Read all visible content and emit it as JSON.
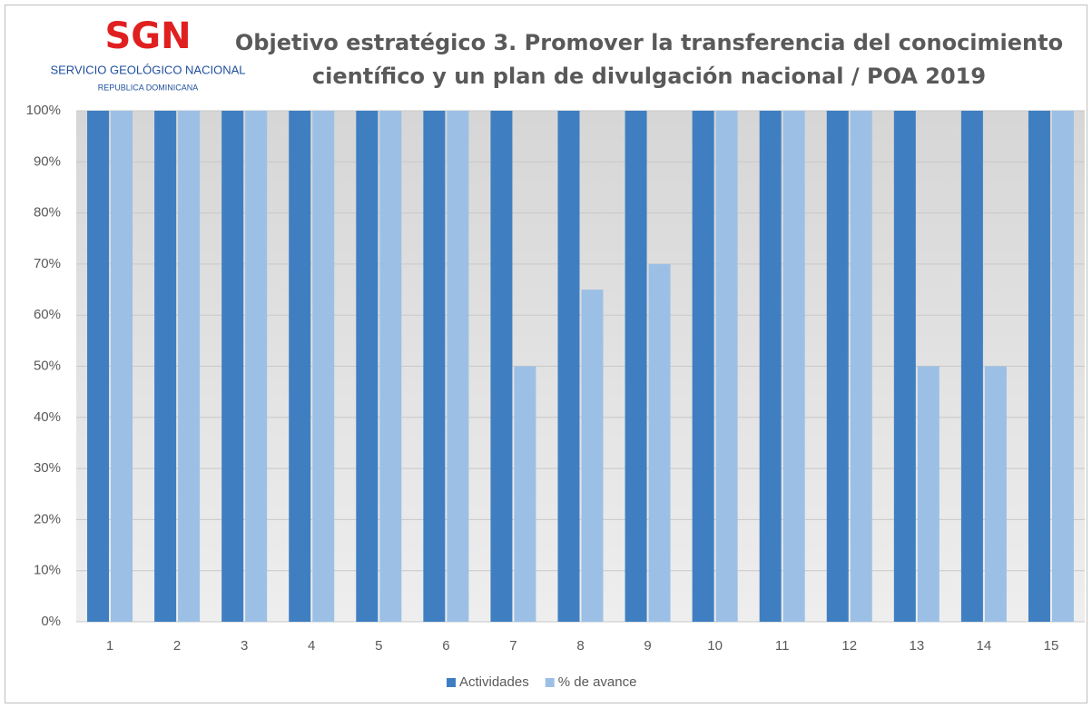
{
  "logo": {
    "mark": "SGN",
    "name": "SERVICIO GEOLÓGICO NACIONAL",
    "country": "REPUBLICA DOMINICANA"
  },
  "chart_data": {
    "type": "bar",
    "title": [
      "Objetivo estratégico 3. Promover la transferencia del conocimiento",
      "científico y un plan de divulgación nacional / POA 2019"
    ],
    "categories": [
      "1",
      "2",
      "3",
      "4",
      "5",
      "6",
      "7",
      "8",
      "9",
      "10",
      "11",
      "12",
      "13",
      "14",
      "15"
    ],
    "series": [
      {
        "name": "Actividades",
        "color": "#3f7fc1",
        "values": [
          100,
          100,
          100,
          100,
          100,
          100,
          100,
          100,
          100,
          100,
          100,
          100,
          100,
          100,
          100
        ]
      },
      {
        "name": "% de avance",
        "color": "#9cc0e5",
        "values": [
          100,
          100,
          100,
          100,
          100,
          100,
          50,
          65,
          70,
          100,
          100,
          100,
          50,
          50,
          100
        ]
      }
    ],
    "ylim": [
      0,
      100
    ],
    "yticks": [
      {
        "value": 0,
        "label": "0%"
      },
      {
        "value": 10,
        "label": "10%"
      },
      {
        "value": 20,
        "label": "20%"
      },
      {
        "value": 30,
        "label": "30%"
      },
      {
        "value": 40,
        "label": "40%"
      },
      {
        "value": 50,
        "label": "50%"
      },
      {
        "value": 60,
        "label": "60%"
      },
      {
        "value": 70,
        "label": "70%"
      },
      {
        "value": 80,
        "label": "80%"
      },
      {
        "value": 90,
        "label": "90%"
      },
      {
        "value": 100,
        "label": "100%"
      }
    ],
    "grid": true,
    "legend": "bottom"
  }
}
